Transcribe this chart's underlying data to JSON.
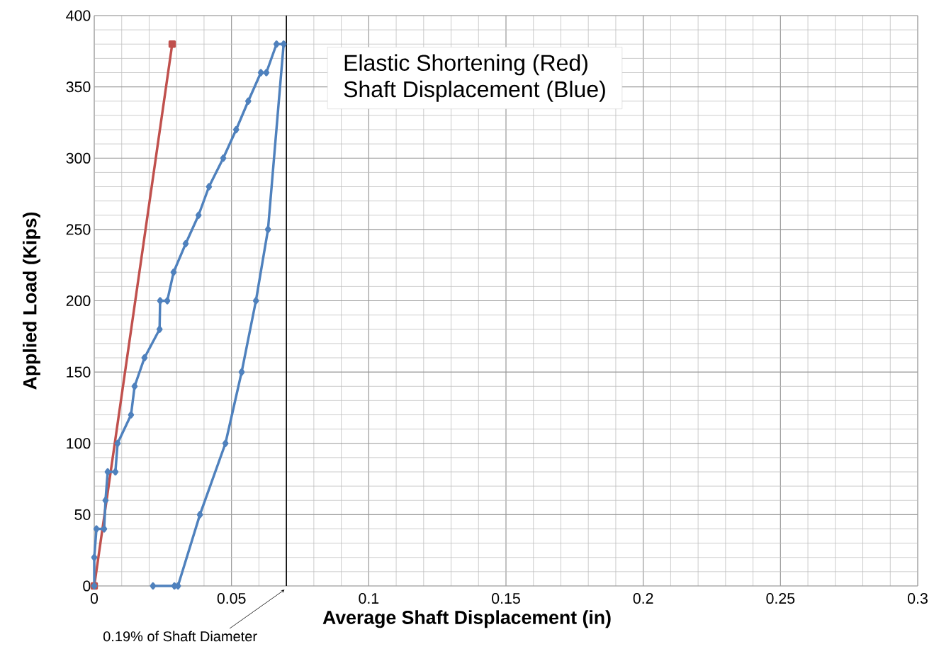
{
  "chart_data": {
    "type": "line",
    "xlabel": "Average Shaft Displacement (in)",
    "ylabel": "Applied Load (Kips)",
    "annotations": [
      "Elastic Shortening (Red)",
      "Shaft Displacement (Blue)"
    ],
    "xlim": [
      0,
      0.3
    ],
    "ylim": [
      0,
      400
    ],
    "xticks": [
      0,
      0.05,
      0.1,
      0.15,
      0.2,
      0.25,
      0.3
    ],
    "yticks": [
      0,
      50,
      100,
      150,
      200,
      250,
      300,
      350,
      400
    ],
    "grid": true,
    "line_style": "solid",
    "ref_lines": [
      {
        "axis": "x",
        "value": 0.07,
        "label": "0.19% of Shaft Diameter",
        "color": "#000000"
      }
    ],
    "series": [
      {
        "color": "#c0504d",
        "marker": "square",
        "x": [
          0,
          0.0284
        ],
        "values": [
          0,
          380
        ]
      },
      {
        "color": "#4f81bd",
        "marker": "diamond",
        "x": [
          0,
          0,
          0.0008,
          0.0036,
          0.0041,
          0.0049,
          0.0077,
          0.0085,
          0.0134,
          0.0147,
          0.0183,
          0.0238,
          0.024,
          0.0266,
          0.0289,
          0.0333,
          0.038,
          0.0418,
          0.047,
          0.0517,
          0.0561,
          0.0607,
          0.0627,
          0.0664,
          0.069,
          0.0633,
          0.0589,
          0.0537,
          0.0478,
          0.0385,
          0.0305,
          0.0292,
          0.0214
        ],
        "values": [
          0,
          20,
          40,
          40,
          60,
          80,
          80,
          100,
          120,
          140,
          160,
          180,
          200,
          200,
          220,
          240,
          260,
          280,
          300,
          320,
          340,
          360,
          360,
          380,
          380,
          250,
          200,
          150,
          100,
          50,
          0,
          0,
          0
        ]
      }
    ]
  }
}
